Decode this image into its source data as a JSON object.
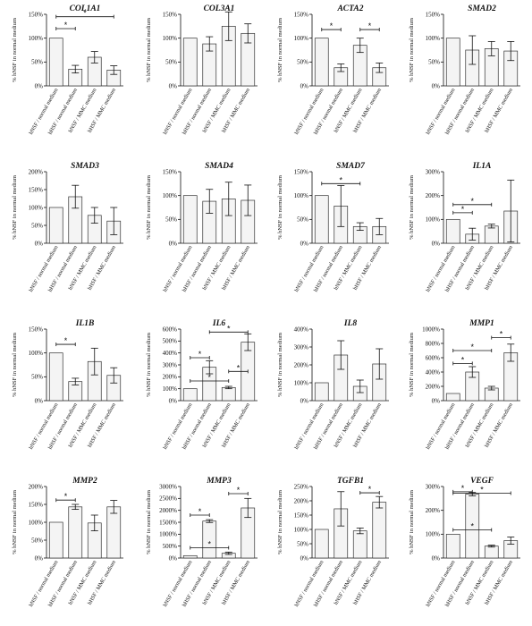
{
  "figure": {
    "ylabel": "% hNSF in normal medium",
    "categories": [
      "hNSF / normal medium",
      "hHSF / normal medium",
      "hNSF / MMC medium",
      "hHSF / MMC medium"
    ],
    "bar_fill": "#f4f4f4",
    "bar_stroke": "#333333"
  },
  "chart_data": [
    {
      "type": "bar",
      "title": "COL1A1",
      "ylim": [
        0,
        150
      ],
      "yticks": [
        0,
        50,
        100,
        150
      ],
      "values": [
        100,
        35,
        60,
        33
      ],
      "errors": [
        0,
        8,
        12,
        9
      ],
      "significance": [
        {
          "a": 0,
          "b": 1,
          "y": 120,
          "label": "*"
        },
        {
          "a": 0,
          "b": 3,
          "y": 145,
          "label": "*"
        }
      ]
    },
    {
      "type": "bar",
      "title": "COL3A1",
      "ylim": [
        0,
        150
      ],
      "yticks": [
        0,
        50,
        100,
        150
      ],
      "values": [
        100,
        88,
        125,
        110
      ],
      "errors": [
        0,
        15,
        30,
        20
      ],
      "significance": []
    },
    {
      "type": "bar",
      "title": "ACTA2",
      "ylim": [
        0,
        150
      ],
      "yticks": [
        0,
        50,
        100,
        150
      ],
      "values": [
        100,
        38,
        85,
        38
      ],
      "errors": [
        0,
        8,
        15,
        10
      ],
      "significance": [
        {
          "a": 0,
          "b": 1,
          "y": 118,
          "label": "*"
        },
        {
          "a": 2,
          "b": 3,
          "y": 118,
          "label": "*"
        }
      ]
    },
    {
      "type": "bar",
      "title": "SMAD2",
      "ylim": [
        0,
        150
      ],
      "yticks": [
        0,
        50,
        100,
        150
      ],
      "values": [
        100,
        75,
        78,
        73
      ],
      "errors": [
        0,
        30,
        15,
        20
      ],
      "significance": []
    },
    {
      "type": "bar",
      "title": "SMAD3",
      "ylim": [
        0,
        200
      ],
      "yticks": [
        0,
        50,
        100,
        150,
        200
      ],
      "values": [
        100,
        130,
        78,
        62
      ],
      "errors": [
        0,
        32,
        22,
        38
      ],
      "significance": []
    },
    {
      "type": "bar",
      "title": "SMAD4",
      "ylim": [
        0,
        150
      ],
      "yticks": [
        0,
        50,
        100,
        150
      ],
      "values": [
        100,
        88,
        93,
        90
      ],
      "errors": [
        0,
        25,
        35,
        32
      ],
      "significance": []
    },
    {
      "type": "bar",
      "title": "SMAD7",
      "ylim": [
        0,
        150
      ],
      "yticks": [
        0,
        50,
        100,
        150
      ],
      "values": [
        100,
        78,
        35,
        35
      ],
      "errors": [
        0,
        43,
        8,
        17
      ],
      "significance": [
        {
          "a": 0,
          "b": 2,
          "y": 125,
          "label": "*"
        }
      ]
    },
    {
      "type": "bar",
      "title": "IL1A",
      "ylim": [
        0,
        300
      ],
      "yticks": [
        0,
        100,
        200,
        300
      ],
      "values": [
        100,
        38,
        72,
        135
      ],
      "errors": [
        0,
        25,
        8,
        130
      ],
      "significance": [
        {
          "a": 0,
          "b": 1,
          "y": 128,
          "label": "*"
        },
        {
          "a": 0,
          "b": 2,
          "y": 162,
          "label": "*"
        }
      ]
    },
    {
      "type": "bar",
      "title": "IL1B",
      "ylim": [
        0,
        150
      ],
      "yticks": [
        0,
        50,
        100,
        150
      ],
      "values": [
        100,
        40,
        82,
        53
      ],
      "errors": [
        0,
        7,
        28,
        16
      ],
      "significance": [
        {
          "a": 0,
          "b": 1,
          "y": 118,
          "label": "*"
        }
      ]
    },
    {
      "type": "bar",
      "title": "IL6",
      "ylim": [
        0,
        600
      ],
      "yticks": [
        0,
        100,
        200,
        300,
        400,
        500,
        600
      ],
      "values": [
        100,
        280,
        110,
        490
      ],
      "errors": [
        0,
        55,
        10,
        70
      ],
      "significance": [
        {
          "a": 0,
          "b": 1,
          "y": 360,
          "label": "*"
        },
        {
          "a": 0,
          "b": 2,
          "y": 165,
          "label": "*"
        },
        {
          "a": 2,
          "b": 3,
          "y": 245,
          "label": "*"
        },
        {
          "a": 1,
          "b": 3,
          "y": 575,
          "label": "*"
        }
      ]
    },
    {
      "type": "bar",
      "title": "IL8",
      "ylim": [
        0,
        400
      ],
      "yticks": [
        0,
        100,
        200,
        300,
        400
      ],
      "values": [
        100,
        255,
        80,
        205
      ],
      "errors": [
        0,
        80,
        35,
        85
      ],
      "significance": []
    },
    {
      "type": "bar",
      "title": "MMP1",
      "ylim": [
        0,
        1000
      ],
      "yticks": [
        0,
        200,
        400,
        600,
        800,
        1000
      ],
      "values": [
        100,
        400,
        175,
        670
      ],
      "errors": [
        0,
        75,
        25,
        120
      ],
      "significance": [
        {
          "a": 0,
          "b": 1,
          "y": 520,
          "label": "*"
        },
        {
          "a": 0,
          "b": 2,
          "y": 700,
          "label": "*"
        },
        {
          "a": 2,
          "b": 3,
          "y": 880,
          "label": "*"
        }
      ]
    },
    {
      "type": "bar",
      "title": "MMP2",
      "ylim": [
        0,
        200
      ],
      "yticks": [
        0,
        50,
        100,
        150,
        200
      ],
      "values": [
        100,
        143,
        98,
        143
      ],
      "errors": [
        0,
        7,
        22,
        18
      ],
      "significance": [
        {
          "a": 0,
          "b": 1,
          "y": 162,
          "label": "*"
        }
      ]
    },
    {
      "type": "bar",
      "title": "MMP3",
      "ylim": [
        0,
        3000
      ],
      "yticks": [
        0,
        500,
        1000,
        1500,
        2000,
        2500,
        3000
      ],
      "values": [
        100,
        1550,
        200,
        2100
      ],
      "errors": [
        0,
        60,
        50,
        400
      ],
      "significance": [
        {
          "a": 0,
          "b": 1,
          "y": 1800,
          "label": "*"
        },
        {
          "a": 0,
          "b": 2,
          "y": 430,
          "label": "*"
        },
        {
          "a": 2,
          "b": 3,
          "y": 2700,
          "label": "*"
        }
      ]
    },
    {
      "type": "bar",
      "title": "TGFB1",
      "ylim": [
        0,
        250
      ],
      "yticks": [
        0,
        50,
        100,
        150,
        200,
        250
      ],
      "values": [
        100,
        172,
        95,
        195
      ],
      "errors": [
        0,
        60,
        10,
        20
      ],
      "significance": [
        {
          "a": 2,
          "b": 3,
          "y": 228,
          "label": "*"
        }
      ]
    },
    {
      "type": "bar",
      "title": "VEGF",
      "ylim": [
        0,
        300
      ],
      "yticks": [
        0,
        100,
        200,
        300
      ],
      "values": [
        100,
        268,
        50,
        73
      ],
      "errors": [
        0,
        7,
        4,
        15
      ],
      "significance": [
        {
          "a": 0,
          "b": 1,
          "y": 278,
          "label": "*"
        },
        {
          "a": 0,
          "b": 3,
          "y": 272,
          "label": "*"
        },
        {
          "a": 0,
          "b": 2,
          "y": 118,
          "label": "*"
        }
      ]
    }
  ]
}
